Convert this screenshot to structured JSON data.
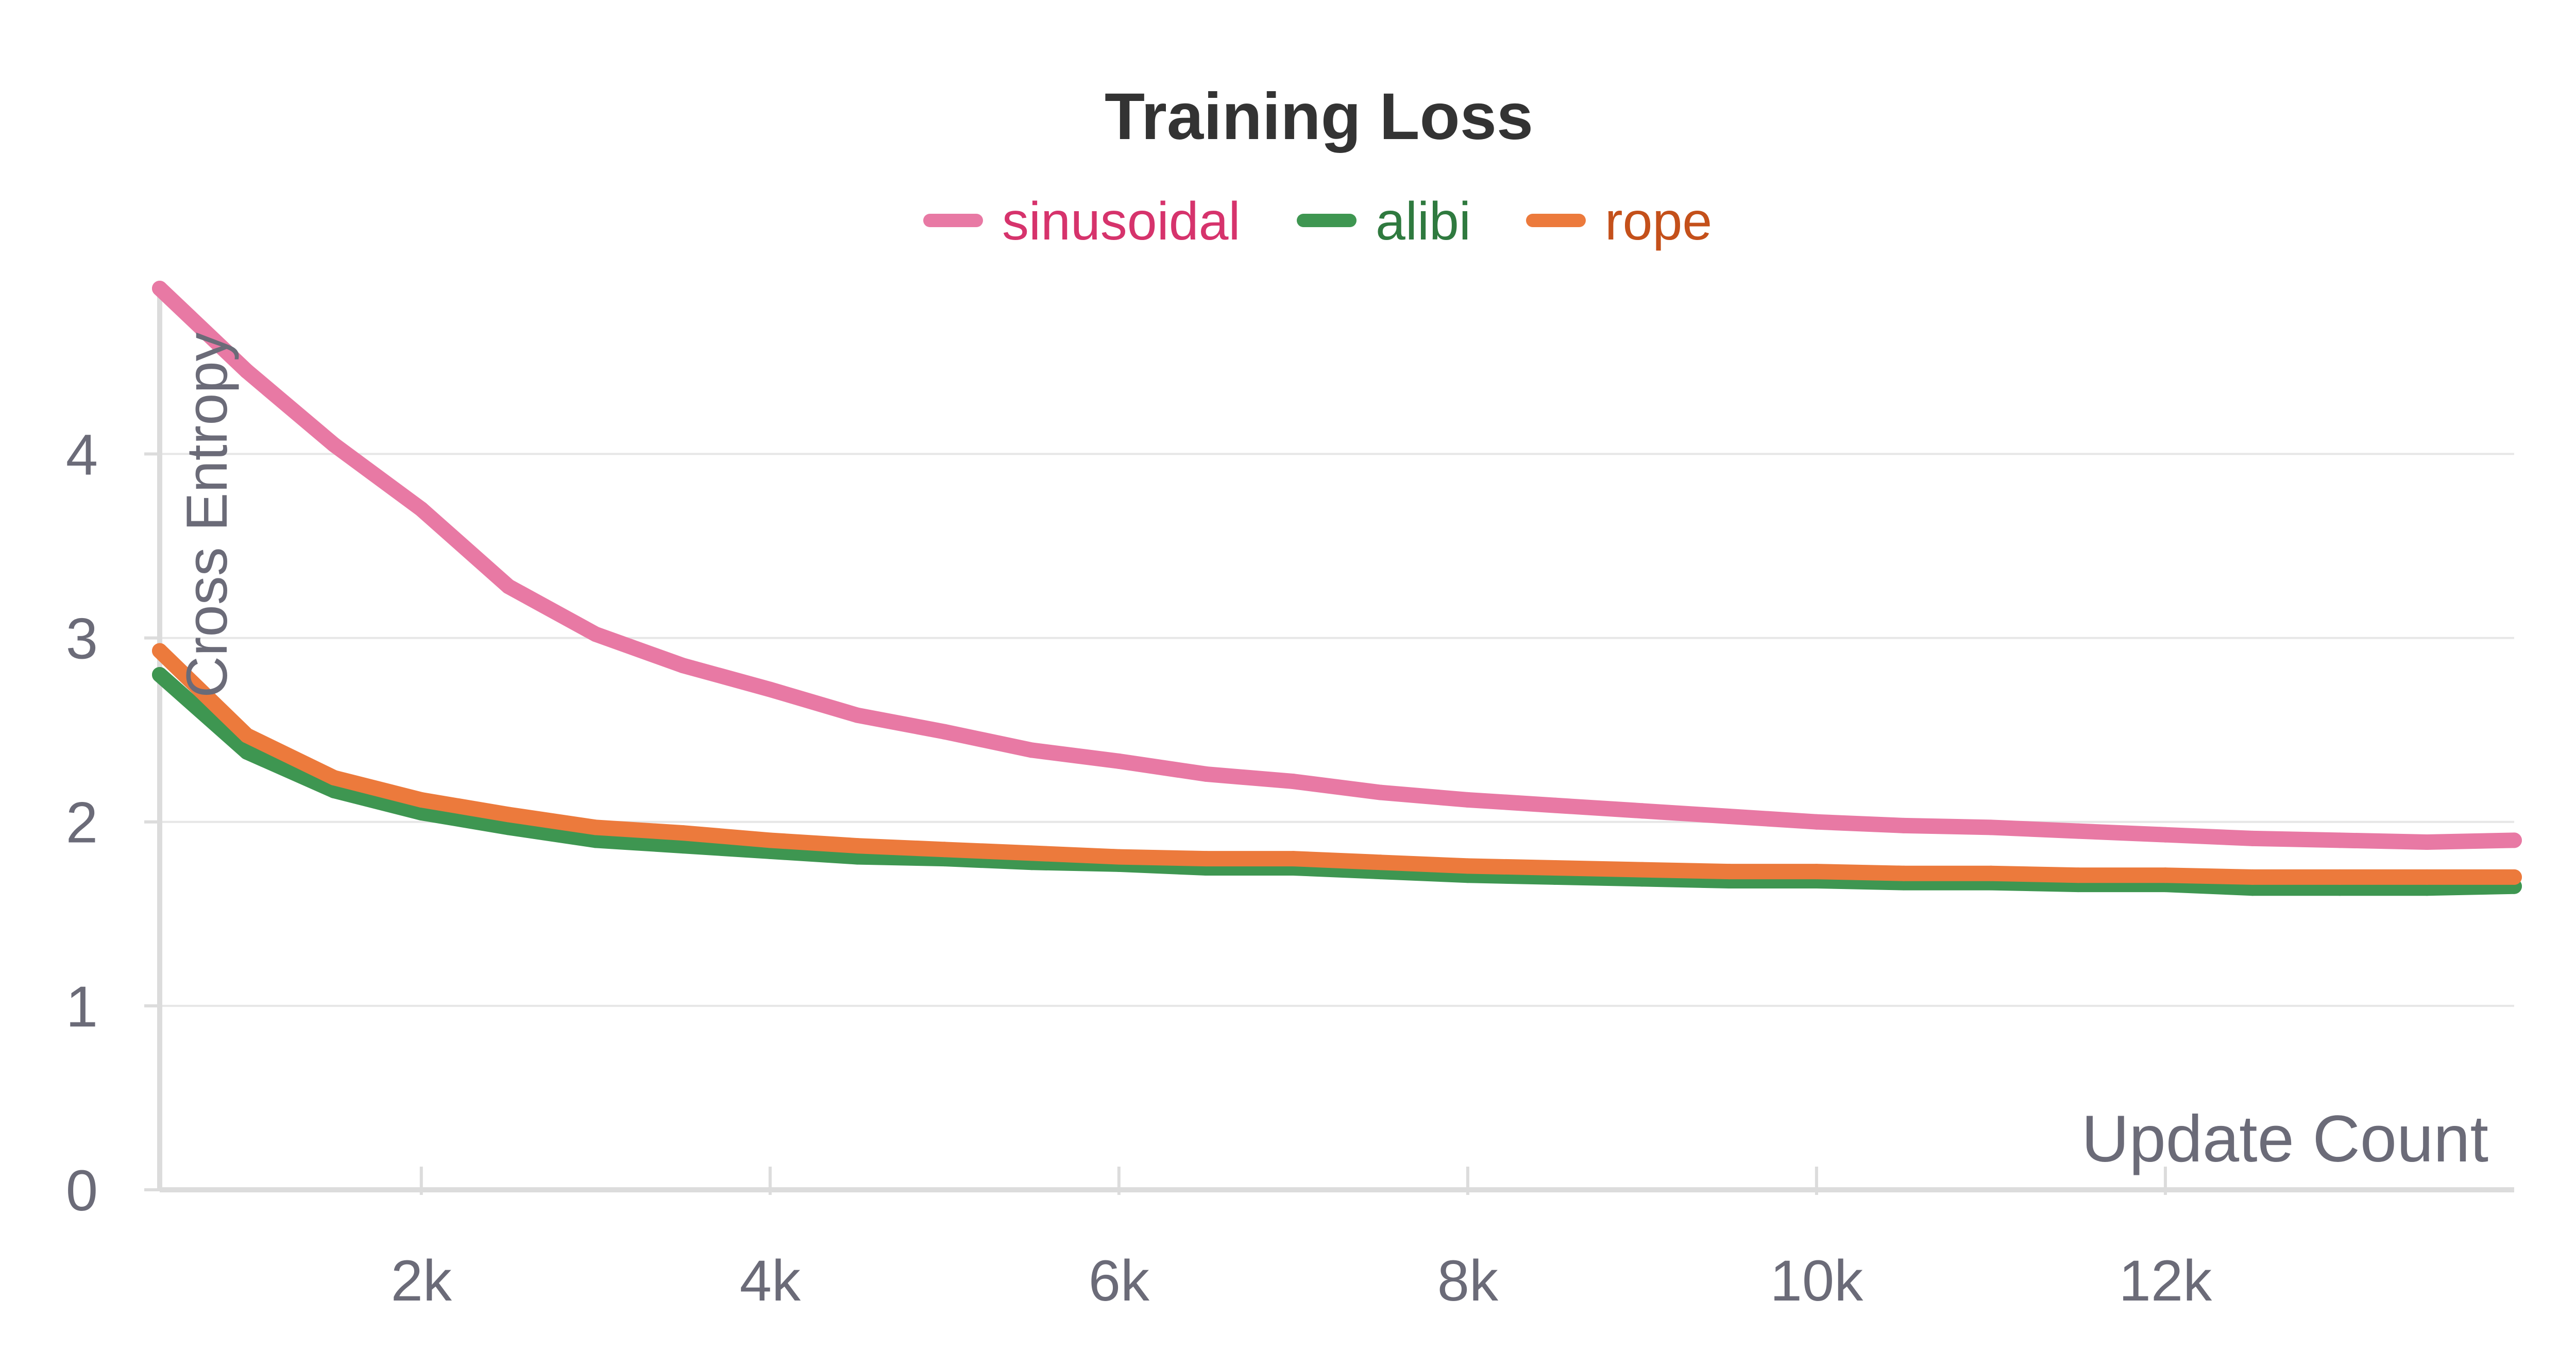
{
  "chart_data": {
    "type": "line",
    "title": "Training Loss",
    "xlabel": "Update Count",
    "ylabel": "Cross Entropy",
    "xlim": [
      500,
      14000
    ],
    "ylim": [
      0,
      4.9
    ],
    "x_ticks": [
      2000,
      4000,
      6000,
      8000,
      10000,
      12000
    ],
    "x_tick_labels": [
      "2k",
      "4k",
      "6k",
      "8k",
      "10k",
      "12k"
    ],
    "y_ticks": [
      0,
      1,
      2,
      3,
      4
    ],
    "y_tick_labels": [
      "0",
      "1",
      "2",
      "3",
      "4"
    ],
    "grid": true,
    "legend": "top-center",
    "x": [
      500,
      1000,
      1500,
      2000,
      2500,
      3000,
      3500,
      4000,
      4500,
      5000,
      5500,
      6000,
      6500,
      7000,
      7500,
      8000,
      8500,
      9000,
      9500,
      10000,
      10500,
      11000,
      11500,
      12000,
      12500,
      13000,
      13500,
      14000
    ],
    "series": [
      {
        "name": "sinusoidal",
        "color": "#e879a4",
        "legend_text_color": "#d6336c",
        "values": [
          4.9,
          4.45,
          4.05,
          3.7,
          3.28,
          3.02,
          2.85,
          2.72,
          2.58,
          2.49,
          2.39,
          2.33,
          2.26,
          2.22,
          2.16,
          2.12,
          2.09,
          2.06,
          2.03,
          2.0,
          1.98,
          1.97,
          1.95,
          1.93,
          1.91,
          1.9,
          1.89,
          1.9
        ]
      },
      {
        "name": "alibi",
        "color": "#3e9651",
        "legend_text_color": "#2f7a3f",
        "values": [
          2.8,
          2.38,
          2.17,
          2.05,
          1.97,
          1.9,
          1.87,
          1.84,
          1.81,
          1.8,
          1.78,
          1.77,
          1.75,
          1.75,
          1.73,
          1.71,
          1.7,
          1.69,
          1.68,
          1.68,
          1.67,
          1.67,
          1.66,
          1.66,
          1.64,
          1.64,
          1.64,
          1.65
        ]
      },
      {
        "name": "rope",
        "color": "#ec7a3c",
        "legend_text_color": "#c4501a",
        "values": [
          2.93,
          2.47,
          2.24,
          2.12,
          2.04,
          1.97,
          1.94,
          1.9,
          1.87,
          1.85,
          1.83,
          1.81,
          1.8,
          1.8,
          1.78,
          1.76,
          1.75,
          1.74,
          1.73,
          1.73,
          1.72,
          1.72,
          1.71,
          1.71,
          1.7,
          1.7,
          1.7,
          1.7
        ]
      }
    ]
  },
  "colors": {
    "grid": "#e6e6e6",
    "axis": "#dcdcdc",
    "tick_text": "#6b6b78",
    "title_text": "#333333"
  }
}
